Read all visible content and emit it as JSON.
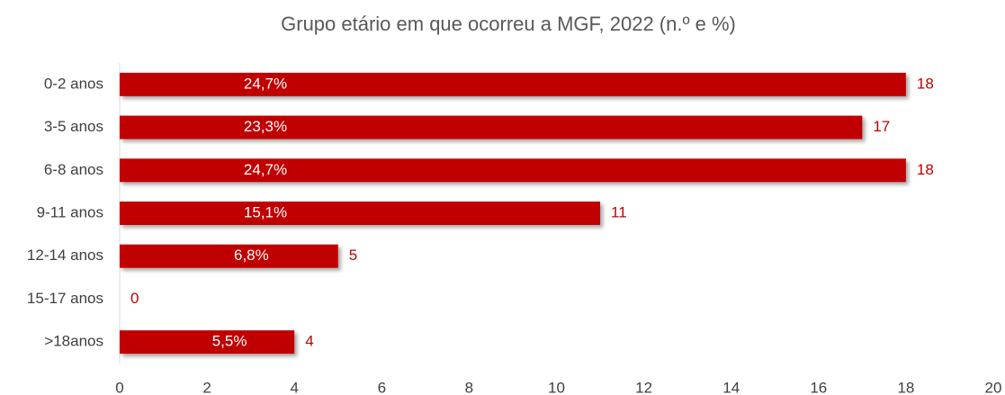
{
  "chart_data": {
    "type": "bar",
    "orientation": "horizontal",
    "title": "Grupo etário em que ocorreu a MGF, 2022 (n.º e %)",
    "categories": [
      "0-2 anos",
      "3-5 anos",
      "6-8 anos",
      "9-11 anos",
      "12-14 anos",
      "15-17 anos",
      ">18anos"
    ],
    "values": [
      18,
      17,
      18,
      11,
      5,
      0,
      4
    ],
    "percent_labels": [
      "24,7%",
      "23,3%",
      "24,7%",
      "15,1%",
      "6,8%",
      null,
      "5,5%"
    ],
    "color": "#c00000",
    "xlim": [
      0,
      20
    ],
    "xticks": [
      0,
      2,
      4,
      6,
      8,
      10,
      12,
      14,
      16,
      18,
      20
    ],
    "grid": false
  }
}
